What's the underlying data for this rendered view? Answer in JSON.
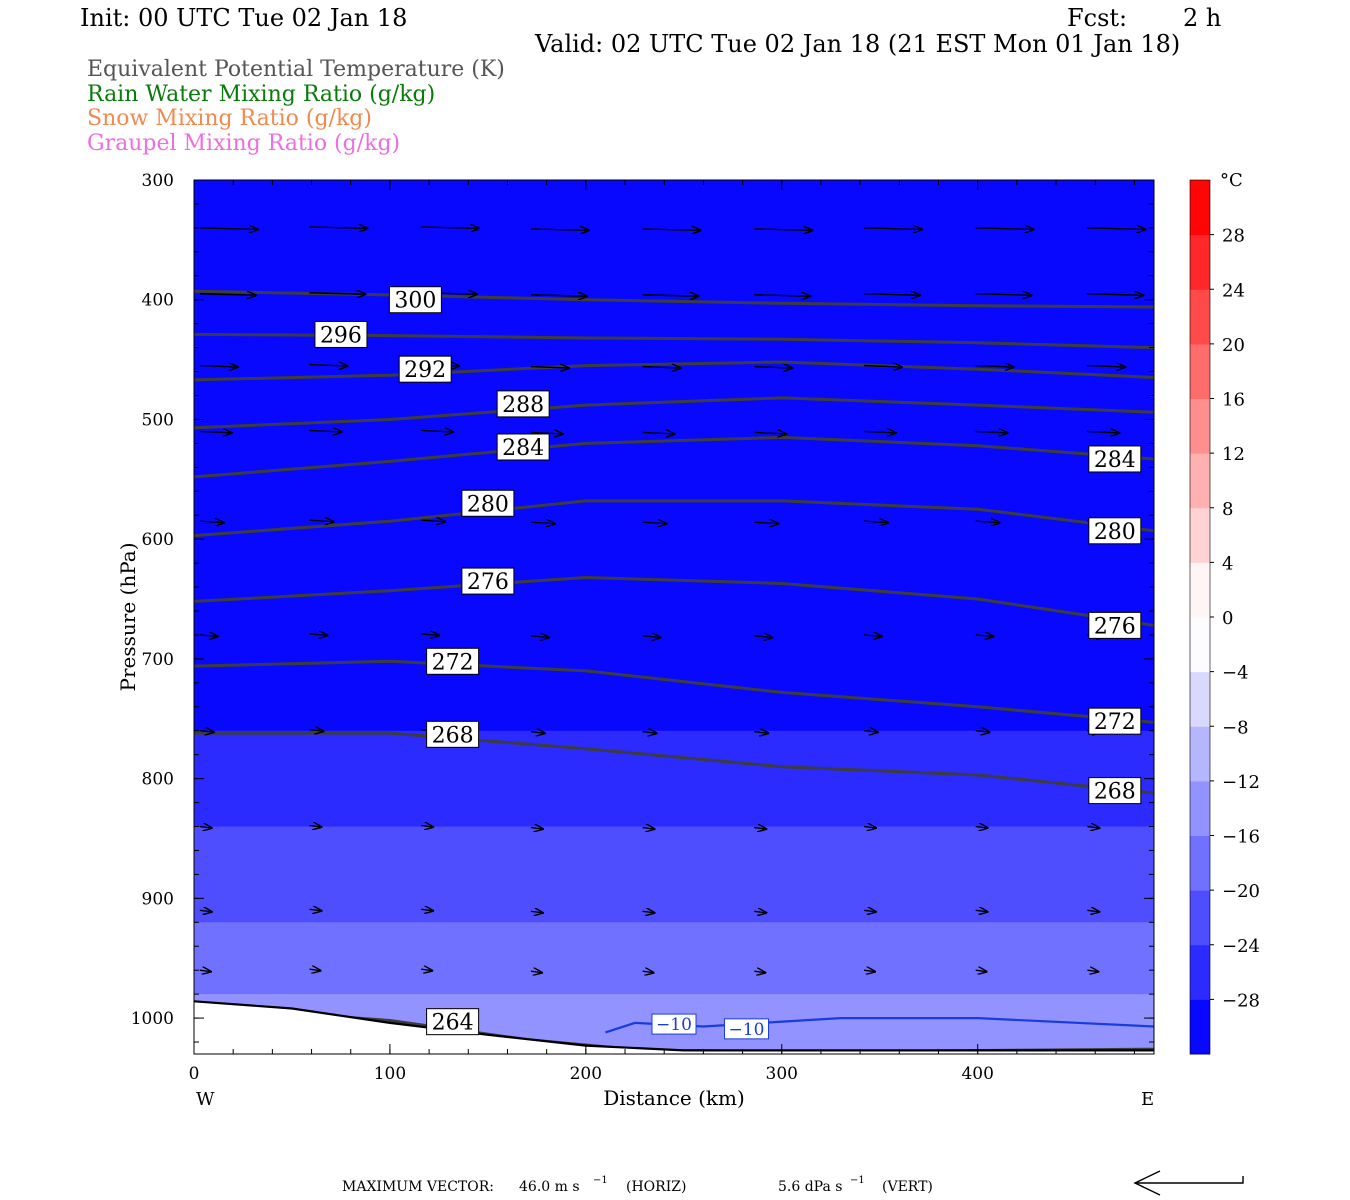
{
  "header": {
    "init": "Init: 00 UTC Tue 02 Jan 18",
    "fcst_label": "Fcst:",
    "fcst_value": "2 h",
    "valid": "Valid: 02 UTC Tue 02 Jan 18 (21 EST Mon 01 Jan 18)"
  },
  "legend_lines": [
    {
      "text": "Equivalent Potential Temperature (K)",
      "color": "#555555"
    },
    {
      "text": "Rain Water Mixing Ratio (g/kg)",
      "color": "#0a7a0a"
    },
    {
      "text": "Snow Mixing Ratio (g/kg)",
      "color": "#f08a50"
    },
    {
      "text": "Graupel Mixing Ratio (g/kg)",
      "color": "#ee6ee0"
    }
  ],
  "axes": {
    "ylabel": "Pressure (hPa)",
    "xlabel": "Distance (km)",
    "west": "W",
    "east": "E"
  },
  "colorbar": {
    "unit": "°C",
    "tick_labels": [
      "28",
      "24",
      "20",
      "16",
      "12",
      "8",
      "4",
      "0",
      "−4",
      "−8",
      "−12",
      "−16",
      "−20",
      "−24",
      "−28"
    ]
  },
  "footer": {
    "max_vector_label": "MAXIMUM VECTOR:",
    "horiz": "46.0 m s",
    "horiz_exp": "−1",
    "horiz_unit": "(HORIZ)",
    "vert": "5.6 dPa s",
    "vert_exp": "−1",
    "vert_unit": "(VERT)"
  },
  "chart_data": {
    "type": "contour",
    "x_range_km": [
      0,
      490
    ],
    "y_range_hpa": [
      300,
      1030
    ],
    "y_scale": "linear, inverted (pressure)",
    "x_ticks": [
      0,
      100,
      200,
      300,
      400
    ],
    "y_ticks": [
      300,
      400,
      500,
      600,
      700,
      800,
      900,
      1000
    ],
    "colorbar_range_c": [
      -32,
      32
    ],
    "colorbar_step_c": 4,
    "temperature_field_by_pressure": [
      {
        "p": 300,
        "t": -32
      },
      {
        "p": 640,
        "t": -32
      },
      {
        "p": 700,
        "t": -30
      },
      {
        "p": 760,
        "t": -28
      },
      {
        "p": 800,
        "t": -26
      },
      {
        "p": 840,
        "t": -24
      },
      {
        "p": 880,
        "t": -22
      },
      {
        "p": 920,
        "t": -20
      },
      {
        "p": 950,
        "t": -18
      },
      {
        "p": 980,
        "t": -16
      },
      {
        "p": 1010,
        "t": -14
      },
      {
        "p": 1030,
        "t": -12
      }
    ],
    "theta_e_contours": [
      {
        "label": "300",
        "points": [
          [
            0,
            393
          ],
          [
            100,
            396
          ],
          [
            200,
            400
          ],
          [
            300,
            403
          ],
          [
            400,
            405
          ],
          [
            490,
            406
          ]
        ],
        "label_at": [
          [
            113,
            400
          ]
        ]
      },
      {
        "label": "296",
        "points": [
          [
            0,
            429
          ],
          [
            100,
            430
          ],
          [
            200,
            432
          ],
          [
            300,
            433
          ],
          [
            400,
            436
          ],
          [
            490,
            440
          ]
        ],
        "label_at": [
          [
            75,
            429
          ]
        ]
      },
      {
        "label": "292",
        "points": [
          [
            0,
            467
          ],
          [
            100,
            463
          ],
          [
            200,
            455
          ],
          [
            300,
            452
          ],
          [
            400,
            458
          ],
          [
            490,
            465
          ]
        ],
        "label_at": [
          [
            118,
            458
          ]
        ]
      },
      {
        "label": "288",
        "points": [
          [
            0,
            507
          ],
          [
            100,
            500
          ],
          [
            200,
            488
          ],
          [
            300,
            482
          ],
          [
            400,
            488
          ],
          [
            490,
            494
          ]
        ],
        "label_at": [
          [
            168,
            487
          ]
        ]
      },
      {
        "label": "284",
        "points": [
          [
            0,
            548
          ],
          [
            100,
            535
          ],
          [
            200,
            520
          ],
          [
            300,
            515
          ],
          [
            400,
            522
          ],
          [
            490,
            533
          ]
        ],
        "label_at": [
          [
            168,
            523
          ],
          [
            470,
            533
          ]
        ]
      },
      {
        "label": "280",
        "points": [
          [
            0,
            597
          ],
          [
            100,
            585
          ],
          [
            200,
            568
          ],
          [
            300,
            568
          ],
          [
            400,
            575
          ],
          [
            490,
            593
          ]
        ],
        "label_at": [
          [
            150,
            570
          ],
          [
            470,
            593
          ]
        ]
      },
      {
        "label": "276",
        "points": [
          [
            0,
            652
          ],
          [
            100,
            643
          ],
          [
            200,
            632
          ],
          [
            300,
            637
          ],
          [
            400,
            650
          ],
          [
            490,
            672
          ]
        ],
        "label_at": [
          [
            150,
            635
          ],
          [
            470,
            672
          ]
        ]
      },
      {
        "label": "272",
        "points": [
          [
            0,
            706
          ],
          [
            100,
            702
          ],
          [
            200,
            710
          ],
          [
            300,
            728
          ],
          [
            400,
            740
          ],
          [
            490,
            753
          ]
        ],
        "label_at": [
          [
            132,
            702
          ],
          [
            470,
            752
          ]
        ]
      },
      {
        "label": "268",
        "points": [
          [
            0,
            762
          ],
          [
            100,
            762
          ],
          [
            200,
            775
          ],
          [
            300,
            790
          ],
          [
            400,
            797
          ],
          [
            490,
            812
          ]
        ],
        "label_at": [
          [
            132,
            763
          ],
          [
            470,
            810
          ]
        ]
      },
      {
        "label": "264",
        "points": [
          [
            0,
            990
          ],
          [
            100,
            1002
          ],
          [
            170,
            1018
          ],
          [
            230,
            1027
          ],
          [
            330,
            1028
          ],
          [
            490,
            1026
          ]
        ],
        "label_at": [
          [
            132,
            1003
          ]
        ]
      }
    ],
    "temperature_line_contours": [
      {
        "label": "−10",
        "points": [
          [
            210,
            1012
          ],
          [
            225,
            1004
          ],
          [
            260,
            1007
          ],
          [
            330,
            1000
          ],
          [
            400,
            1000
          ],
          [
            490,
            1007
          ]
        ],
        "label_at": [
          [
            245,
            1005
          ],
          [
            282,
            1009
          ]
        ]
      }
    ],
    "wind_vectors": "westerly, strongest (~46 m/s) near 350 hPa, weakening toward the surface"
  }
}
